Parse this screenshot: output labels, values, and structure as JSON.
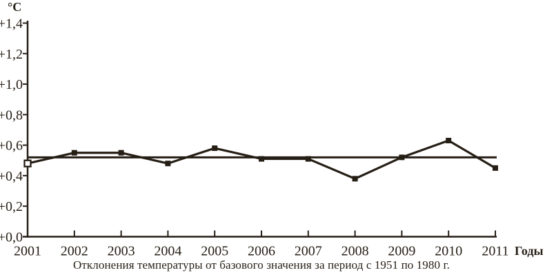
{
  "figure": {
    "y_unit_label": "°C",
    "x_axis_label": "Годы",
    "caption": "Отклонения температуры от базового значения за период с 1951 по 1980 г."
  },
  "colors": {
    "ink": "#251e15",
    "background": "#ffffff",
    "open_marker_fill": "#ffffff"
  },
  "chart_data": {
    "type": "line",
    "title": "",
    "xlabel": "Годы",
    "ylabel": "°C",
    "x": [
      2001,
      2002,
      2003,
      2004,
      2005,
      2006,
      2007,
      2008,
      2009,
      2010,
      2011
    ],
    "xtick_labels": [
      "2001",
      "2002",
      "2003",
      "2004",
      "2005",
      "2006",
      "2007",
      "2008",
      "2009",
      "2010",
      "2011"
    ],
    "ylim": [
      0.0,
      1.4
    ],
    "ytick_step": 0.2,
    "ytick_labels": [
      "+0,0",
      "+0,2",
      "+0,4",
      "+0,6",
      "+0,8",
      "+1,0",
      "+1,2",
      "+1,4"
    ],
    "grid": false,
    "legend": false,
    "series": [
      {
        "name": "temperature-anomaly",
        "values": [
          0.48,
          0.55,
          0.55,
          0.48,
          0.58,
          0.51,
          0.51,
          0.38,
          0.52,
          0.63,
          0.45
        ],
        "marker": "filled-square",
        "first_point_marker": "open-square"
      },
      {
        "name": "base-period-mean",
        "type": "reference-line",
        "value": 0.52
      }
    ]
  }
}
